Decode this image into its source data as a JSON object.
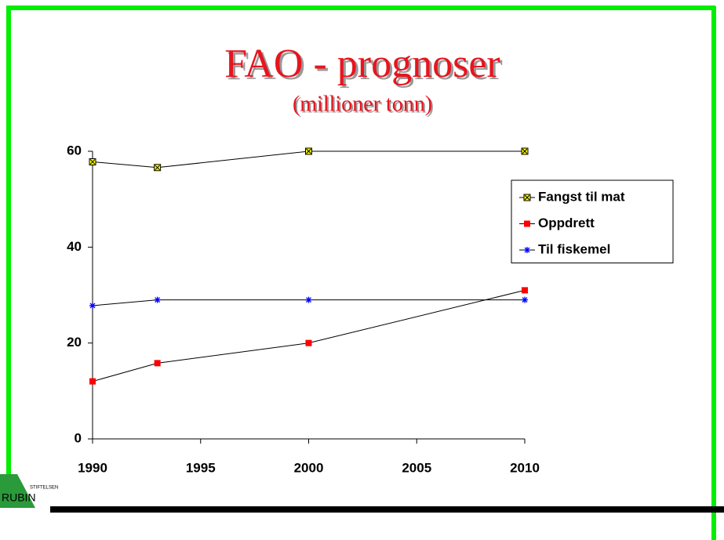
{
  "chart_data": {
    "type": "line",
    "title": "FAO - prognoser",
    "subtitle": "(millioner tonn)",
    "x": [
      1990,
      1993,
      2000,
      2010
    ],
    "series": [
      {
        "name": "Fangst til mat",
        "color": "#ffff00",
        "marker": "square-x",
        "values": [
          57.8,
          56.6,
          60,
          60
        ]
      },
      {
        "name": "Oppdrett",
        "color": "#ff0000",
        "marker": "square",
        "values": [
          12,
          15.8,
          20,
          31
        ]
      },
      {
        "name": "Til fiskemel",
        "color": "#0000ff",
        "marker": "asterisk",
        "values": [
          27.8,
          29,
          29,
          29
        ]
      }
    ],
    "xlim": [
      1990,
      2010
    ],
    "xticks": [
      1990,
      1995,
      2000,
      2005,
      2010
    ],
    "ylim": [
      0,
      60
    ],
    "yticks": [
      0,
      20,
      40,
      60
    ],
    "grid": false,
    "legend": "right"
  },
  "logo": {
    "top": "STIFTELSEN",
    "name": "RUBIN"
  }
}
